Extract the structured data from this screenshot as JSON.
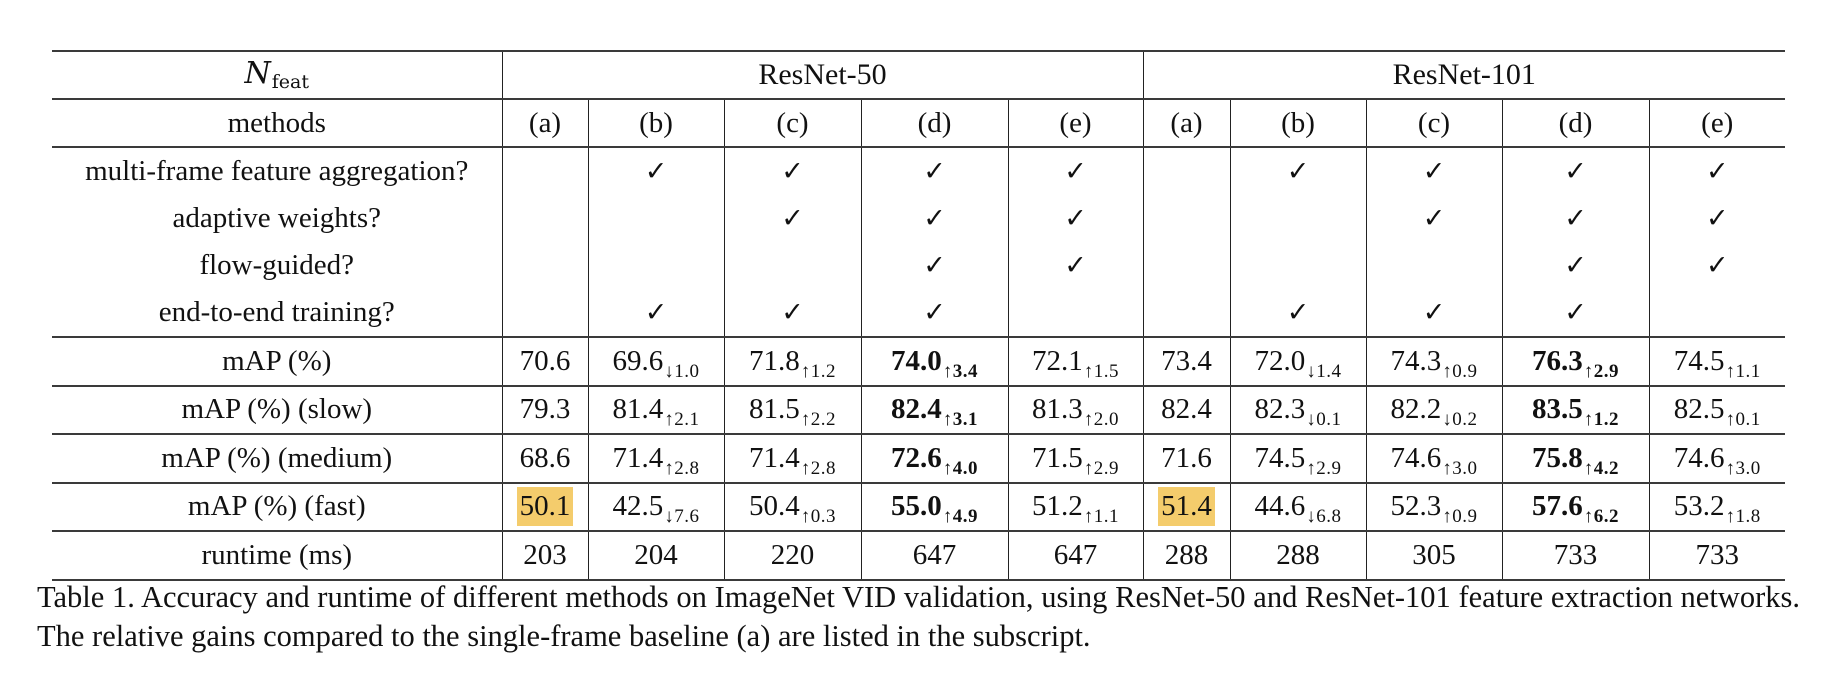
{
  "table": {
    "corner_label": "N",
    "corner_label_sub": "feat",
    "groups": [
      {
        "label": "ResNet-50"
      },
      {
        "label": "ResNet-101"
      }
    ],
    "methods_label": "methods",
    "methods": [
      "(a)",
      "(b)",
      "(c)",
      "(d)",
      "(e)",
      "(a)",
      "(b)",
      "(c)",
      "(d)",
      "(e)"
    ],
    "check_symbol": "✓",
    "feature_rows": [
      {
        "label": "multi-frame feature aggregation?",
        "checks": [
          false,
          true,
          true,
          true,
          true,
          false,
          true,
          true,
          true,
          true
        ]
      },
      {
        "label": "adaptive weights?",
        "checks": [
          false,
          false,
          true,
          true,
          true,
          false,
          false,
          true,
          true,
          true
        ]
      },
      {
        "label": "flow-guided?",
        "checks": [
          false,
          false,
          false,
          true,
          true,
          false,
          false,
          false,
          true,
          true
        ]
      },
      {
        "label": "end-to-end training?",
        "checks": [
          false,
          true,
          true,
          true,
          false,
          false,
          true,
          true,
          true,
          false
        ]
      }
    ],
    "value_rows": [
      {
        "label": "mAP (%)",
        "cells": [
          {
            "v": "70.6",
            "d": ""
          },
          {
            "v": "69.6",
            "d": "↓1.0"
          },
          {
            "v": "71.8",
            "d": "↑1.2"
          },
          {
            "v": "74.0",
            "d": "↑3.4",
            "bold": true
          },
          {
            "v": "72.1",
            "d": "↑1.5"
          },
          {
            "v": "73.4",
            "d": ""
          },
          {
            "v": "72.0",
            "d": "↓1.4"
          },
          {
            "v": "74.3",
            "d": "↑0.9"
          },
          {
            "v": "76.3",
            "d": "↑2.9",
            "bold": true
          },
          {
            "v": "74.5",
            "d": "↑1.1"
          }
        ]
      },
      {
        "label": "mAP (%) (slow)",
        "cells": [
          {
            "v": "79.3",
            "d": ""
          },
          {
            "v": "81.4",
            "d": "↑2.1"
          },
          {
            "v": "81.5",
            "d": "↑2.2"
          },
          {
            "v": "82.4",
            "d": "↑3.1",
            "bold": true
          },
          {
            "v": "81.3",
            "d": "↑2.0"
          },
          {
            "v": "82.4",
            "d": ""
          },
          {
            "v": "82.3",
            "d": "↓0.1"
          },
          {
            "v": "82.2",
            "d": "↓0.2"
          },
          {
            "v": "83.5",
            "d": "↑1.2",
            "bold": true
          },
          {
            "v": "82.5",
            "d": "↑0.1"
          }
        ]
      },
      {
        "label": "mAP (%) (medium)",
        "cells": [
          {
            "v": "68.6",
            "d": ""
          },
          {
            "v": "71.4",
            "d": "↑2.8"
          },
          {
            "v": "71.4",
            "d": "↑2.8"
          },
          {
            "v": "72.6",
            "d": "↑4.0",
            "bold": true
          },
          {
            "v": "71.5",
            "d": "↑2.9"
          },
          {
            "v": "71.6",
            "d": ""
          },
          {
            "v": "74.5",
            "d": "↑2.9"
          },
          {
            "v": "74.6",
            "d": "↑3.0"
          },
          {
            "v": "75.8",
            "d": "↑4.2",
            "bold": true
          },
          {
            "v": "74.6",
            "d": "↑3.0"
          }
        ]
      },
      {
        "label": "mAP (%) (fast)",
        "cells": [
          {
            "v": "50.1",
            "d": "",
            "highlight": true
          },
          {
            "v": "42.5",
            "d": "↓7.6"
          },
          {
            "v": "50.4",
            "d": "↑0.3"
          },
          {
            "v": "55.0",
            "d": "↑4.9",
            "bold": true
          },
          {
            "v": "51.2",
            "d": "↑1.1"
          },
          {
            "v": "51.4",
            "d": "",
            "highlight": true
          },
          {
            "v": "44.6",
            "d": "↓6.8"
          },
          {
            "v": "52.3",
            "d": "↑0.9"
          },
          {
            "v": "57.6",
            "d": "↑6.2",
            "bold": true
          },
          {
            "v": "53.2",
            "d": "↑1.8"
          }
        ]
      }
    ],
    "runtime_row": {
      "label": "runtime (ms)",
      "values": [
        "203",
        "204",
        "220",
        "647",
        "647",
        "288",
        "288",
        "305",
        "733",
        "733"
      ]
    }
  },
  "colors": {
    "highlight": "#f4cc6c",
    "rule": "#3a3a3a",
    "text": "#111111"
  },
  "caption": {
    "line": "Table 1. Accuracy and runtime of different methods on ImageNet VID validation, using ResNet-50 and ResNet-101 feature extraction networks. The relative gains compared to the single-frame baseline (a) are listed in the subscript."
  }
}
